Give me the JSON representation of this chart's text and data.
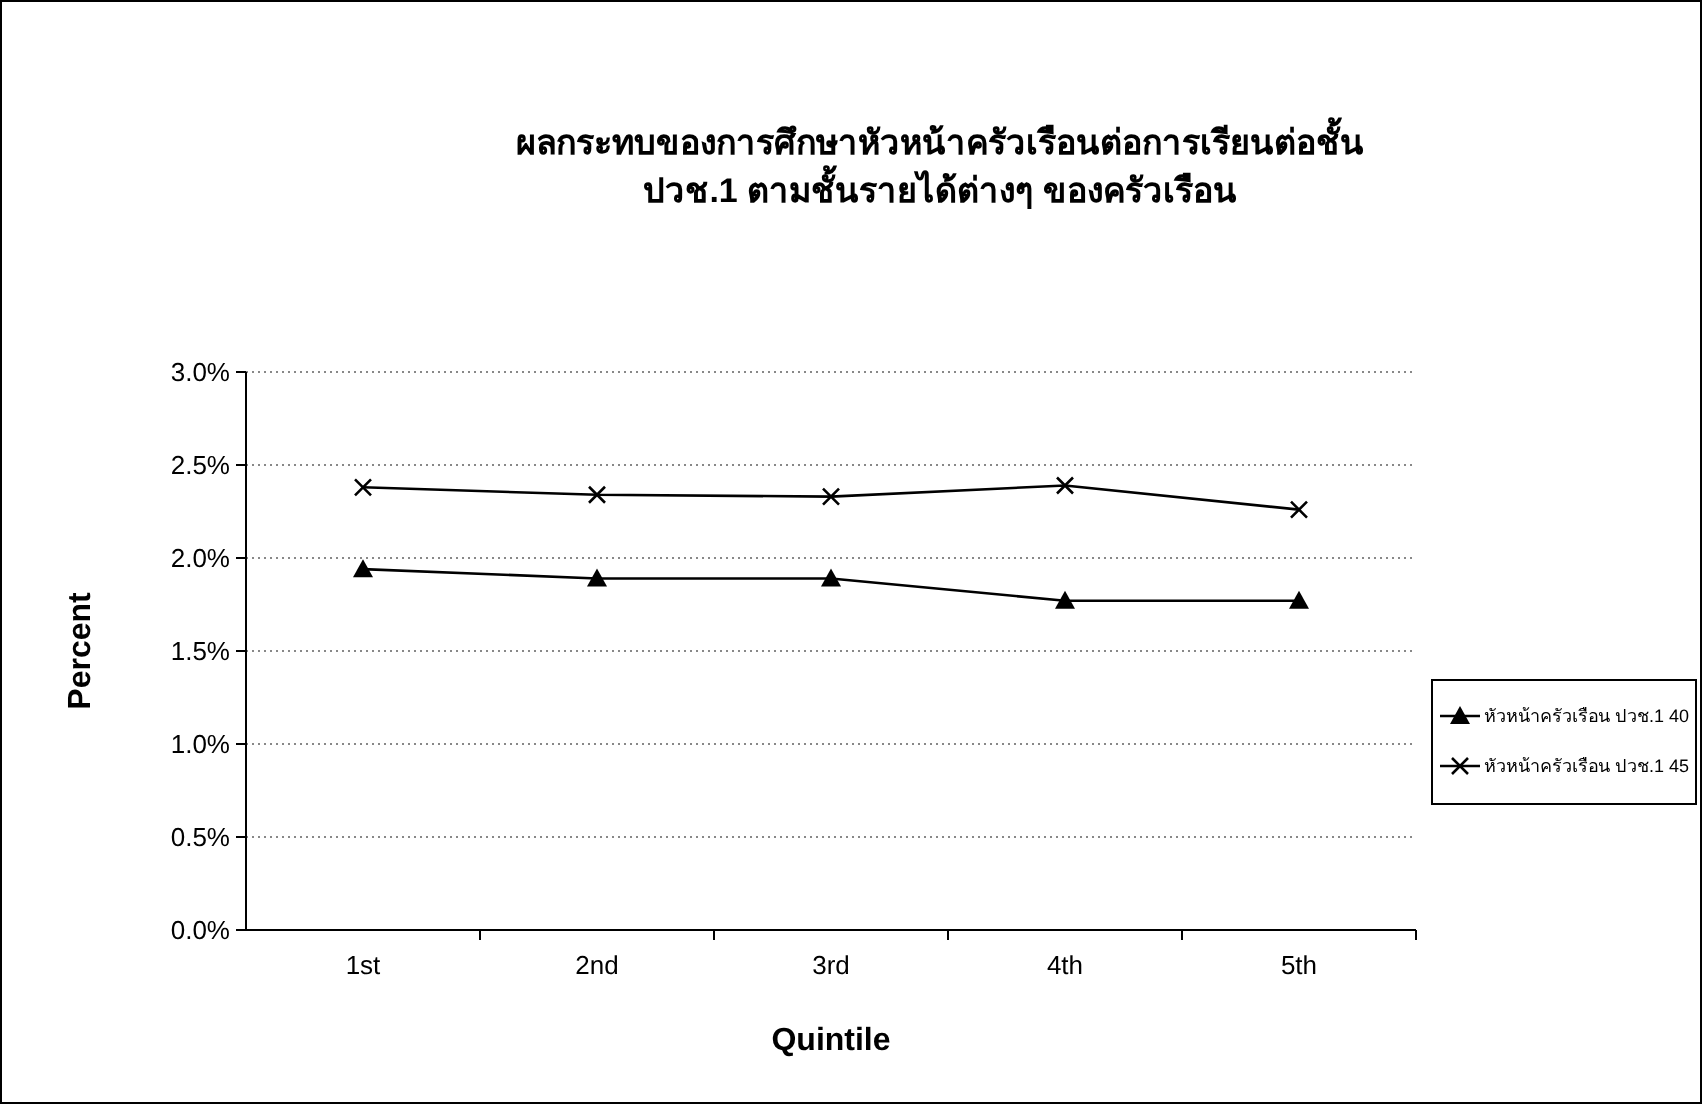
{
  "chart_data": {
    "type": "line",
    "title": "ผลกระทบของการศึกษาหัวหน้าครัวเรือนต่อการเรียนต่อชั้น\nปวช.1 ตามชั้นรายได้ต่างๆ ของครัวเรือน",
    "xlabel": "Quintile",
    "ylabel": "Percent",
    "categories": [
      "1st",
      "2nd",
      "3rd",
      "4th",
      "5th"
    ],
    "series": [
      {
        "name": "หัวหน้าครัวเรือน ปวช.1 40",
        "color": "#000000",
        "marker": "triangle",
        "values": [
          1.94,
          1.89,
          1.89,
          1.77,
          1.77
        ]
      },
      {
        "name": "หัวหน้าครัวเรือน ปวช.1 45",
        "color": "#000000",
        "marker": "cross",
        "values": [
          2.38,
          2.34,
          2.33,
          2.39,
          2.26
        ]
      }
    ],
    "ylim": [
      0,
      3
    ],
    "yticks": [
      {
        "value": 0,
        "label": "0.0%"
      },
      {
        "value": 0.5,
        "label": "0.5%"
      },
      {
        "value": 1,
        "label": "1.0%"
      },
      {
        "value": 1.5,
        "label": "1.5%"
      },
      {
        "value": 2,
        "label": "2.0%"
      },
      {
        "value": 2.5,
        "label": "2.5%"
      },
      {
        "value": 3,
        "label": "3.0%"
      }
    ],
    "grid": "y",
    "legend": "right",
    "line_style": "solid"
  }
}
